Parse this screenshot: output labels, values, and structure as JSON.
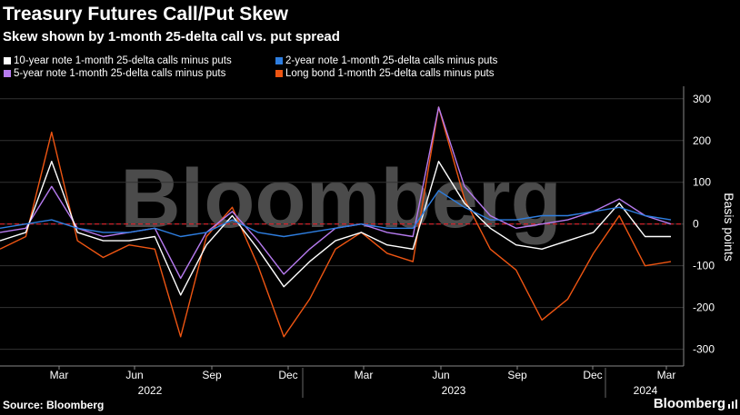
{
  "title": "Treasury Futures Call/Put Skew",
  "subtitle": "Skew shown by 1-month 25-delta call vs. put spread",
  "legend": [
    {
      "label": "10-year note 1-month 25-delta calls minus puts",
      "color": "#ffffff"
    },
    {
      "label": "2-year note 1-month 25-delta calls minus puts",
      "color": "#2e7ee0"
    },
    {
      "label": "5-year note 1-month 25-delta calls minus puts",
      "color": "#b77bf0"
    },
    {
      "label": "Long bond 1-month 25-delta calls minus puts",
      "color": "#ee5512"
    }
  ],
  "source": "Source: Bloomberg",
  "brand": "Bloomberg",
  "watermark": "Bloomberg",
  "chart_data": {
    "type": "line",
    "ylabel": "Basis points",
    "ylim": [
      -340,
      330
    ],
    "yticks": [
      300,
      200,
      100,
      0,
      -100,
      -200,
      -300
    ],
    "xticks": [
      "Mar",
      "Jun",
      "Sep",
      "Dec",
      "Mar",
      "Jun",
      "Sep",
      "Dec",
      "Mar"
    ],
    "years": [
      "2022",
      "2023",
      "2024"
    ],
    "zero_line": true,
    "x": [
      0,
      1,
      2,
      3,
      4,
      5,
      6,
      7,
      8,
      9,
      10,
      11,
      12,
      13,
      14,
      15,
      16,
      17,
      18,
      19,
      20,
      21,
      22,
      23,
      24,
      25,
      26
    ],
    "series": [
      {
        "name": "Long bond 1-month 25-delta calls minus puts",
        "color": "#ee5512",
        "values": [
          -60,
          -30,
          220,
          -40,
          -80,
          -50,
          -60,
          -270,
          -30,
          40,
          -100,
          -270,
          -180,
          -60,
          -20,
          -70,
          -90,
          280,
          60,
          -60,
          -110,
          -230,
          -180,
          -70,
          20,
          -100,
          -90
        ]
      },
      {
        "name": "5-year note 1-month 25-delta calls minus puts",
        "color": "#b77bf0",
        "values": [
          -20,
          -10,
          90,
          -10,
          -30,
          -20,
          -10,
          -130,
          -20,
          30,
          -40,
          -120,
          -60,
          -10,
          0,
          -20,
          -30,
          280,
          90,
          20,
          -10,
          0,
          10,
          30,
          60,
          20,
          0
        ]
      },
      {
        "name": "10-year note 1-month 25-delta calls minus puts",
        "color": "#ffffff",
        "values": [
          -40,
          -20,
          150,
          -20,
          -40,
          -40,
          -30,
          -170,
          -50,
          20,
          -60,
          -150,
          -90,
          -40,
          -20,
          -50,
          -60,
          150,
          50,
          -10,
          -50,
          -60,
          -40,
          -20,
          50,
          -30,
          -30
        ]
      },
      {
        "name": "2-year note 1-month 25-delta calls minus puts",
        "color": "#2e7ee0",
        "values": [
          -10,
          0,
          10,
          -10,
          -20,
          -20,
          -10,
          -30,
          -20,
          10,
          -20,
          -30,
          -20,
          -10,
          0,
          -10,
          -10,
          80,
          40,
          10,
          10,
          20,
          20,
          30,
          40,
          20,
          10
        ]
      }
    ]
  }
}
